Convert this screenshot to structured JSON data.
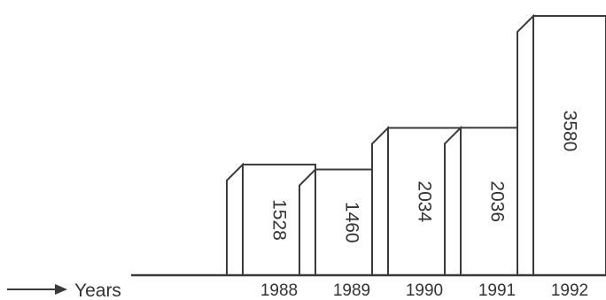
{
  "chart_data": {
    "type": "bar",
    "style": "3d-step-bars",
    "categories": [
      "1988",
      "1989",
      "1990",
      "1991",
      "1992"
    ],
    "values": [
      1528,
      1460,
      2034,
      2036,
      3580
    ],
    "value_labels": [
      "1528",
      "1460",
      "2034",
      "2036",
      "3580"
    ],
    "xlabel": "Years",
    "ylim": [
      0,
      3800
    ],
    "grid": false,
    "legend": "none",
    "colors": {
      "outline": "#3a3a3a",
      "fill": "#ffffff",
      "text": "#333333"
    }
  }
}
